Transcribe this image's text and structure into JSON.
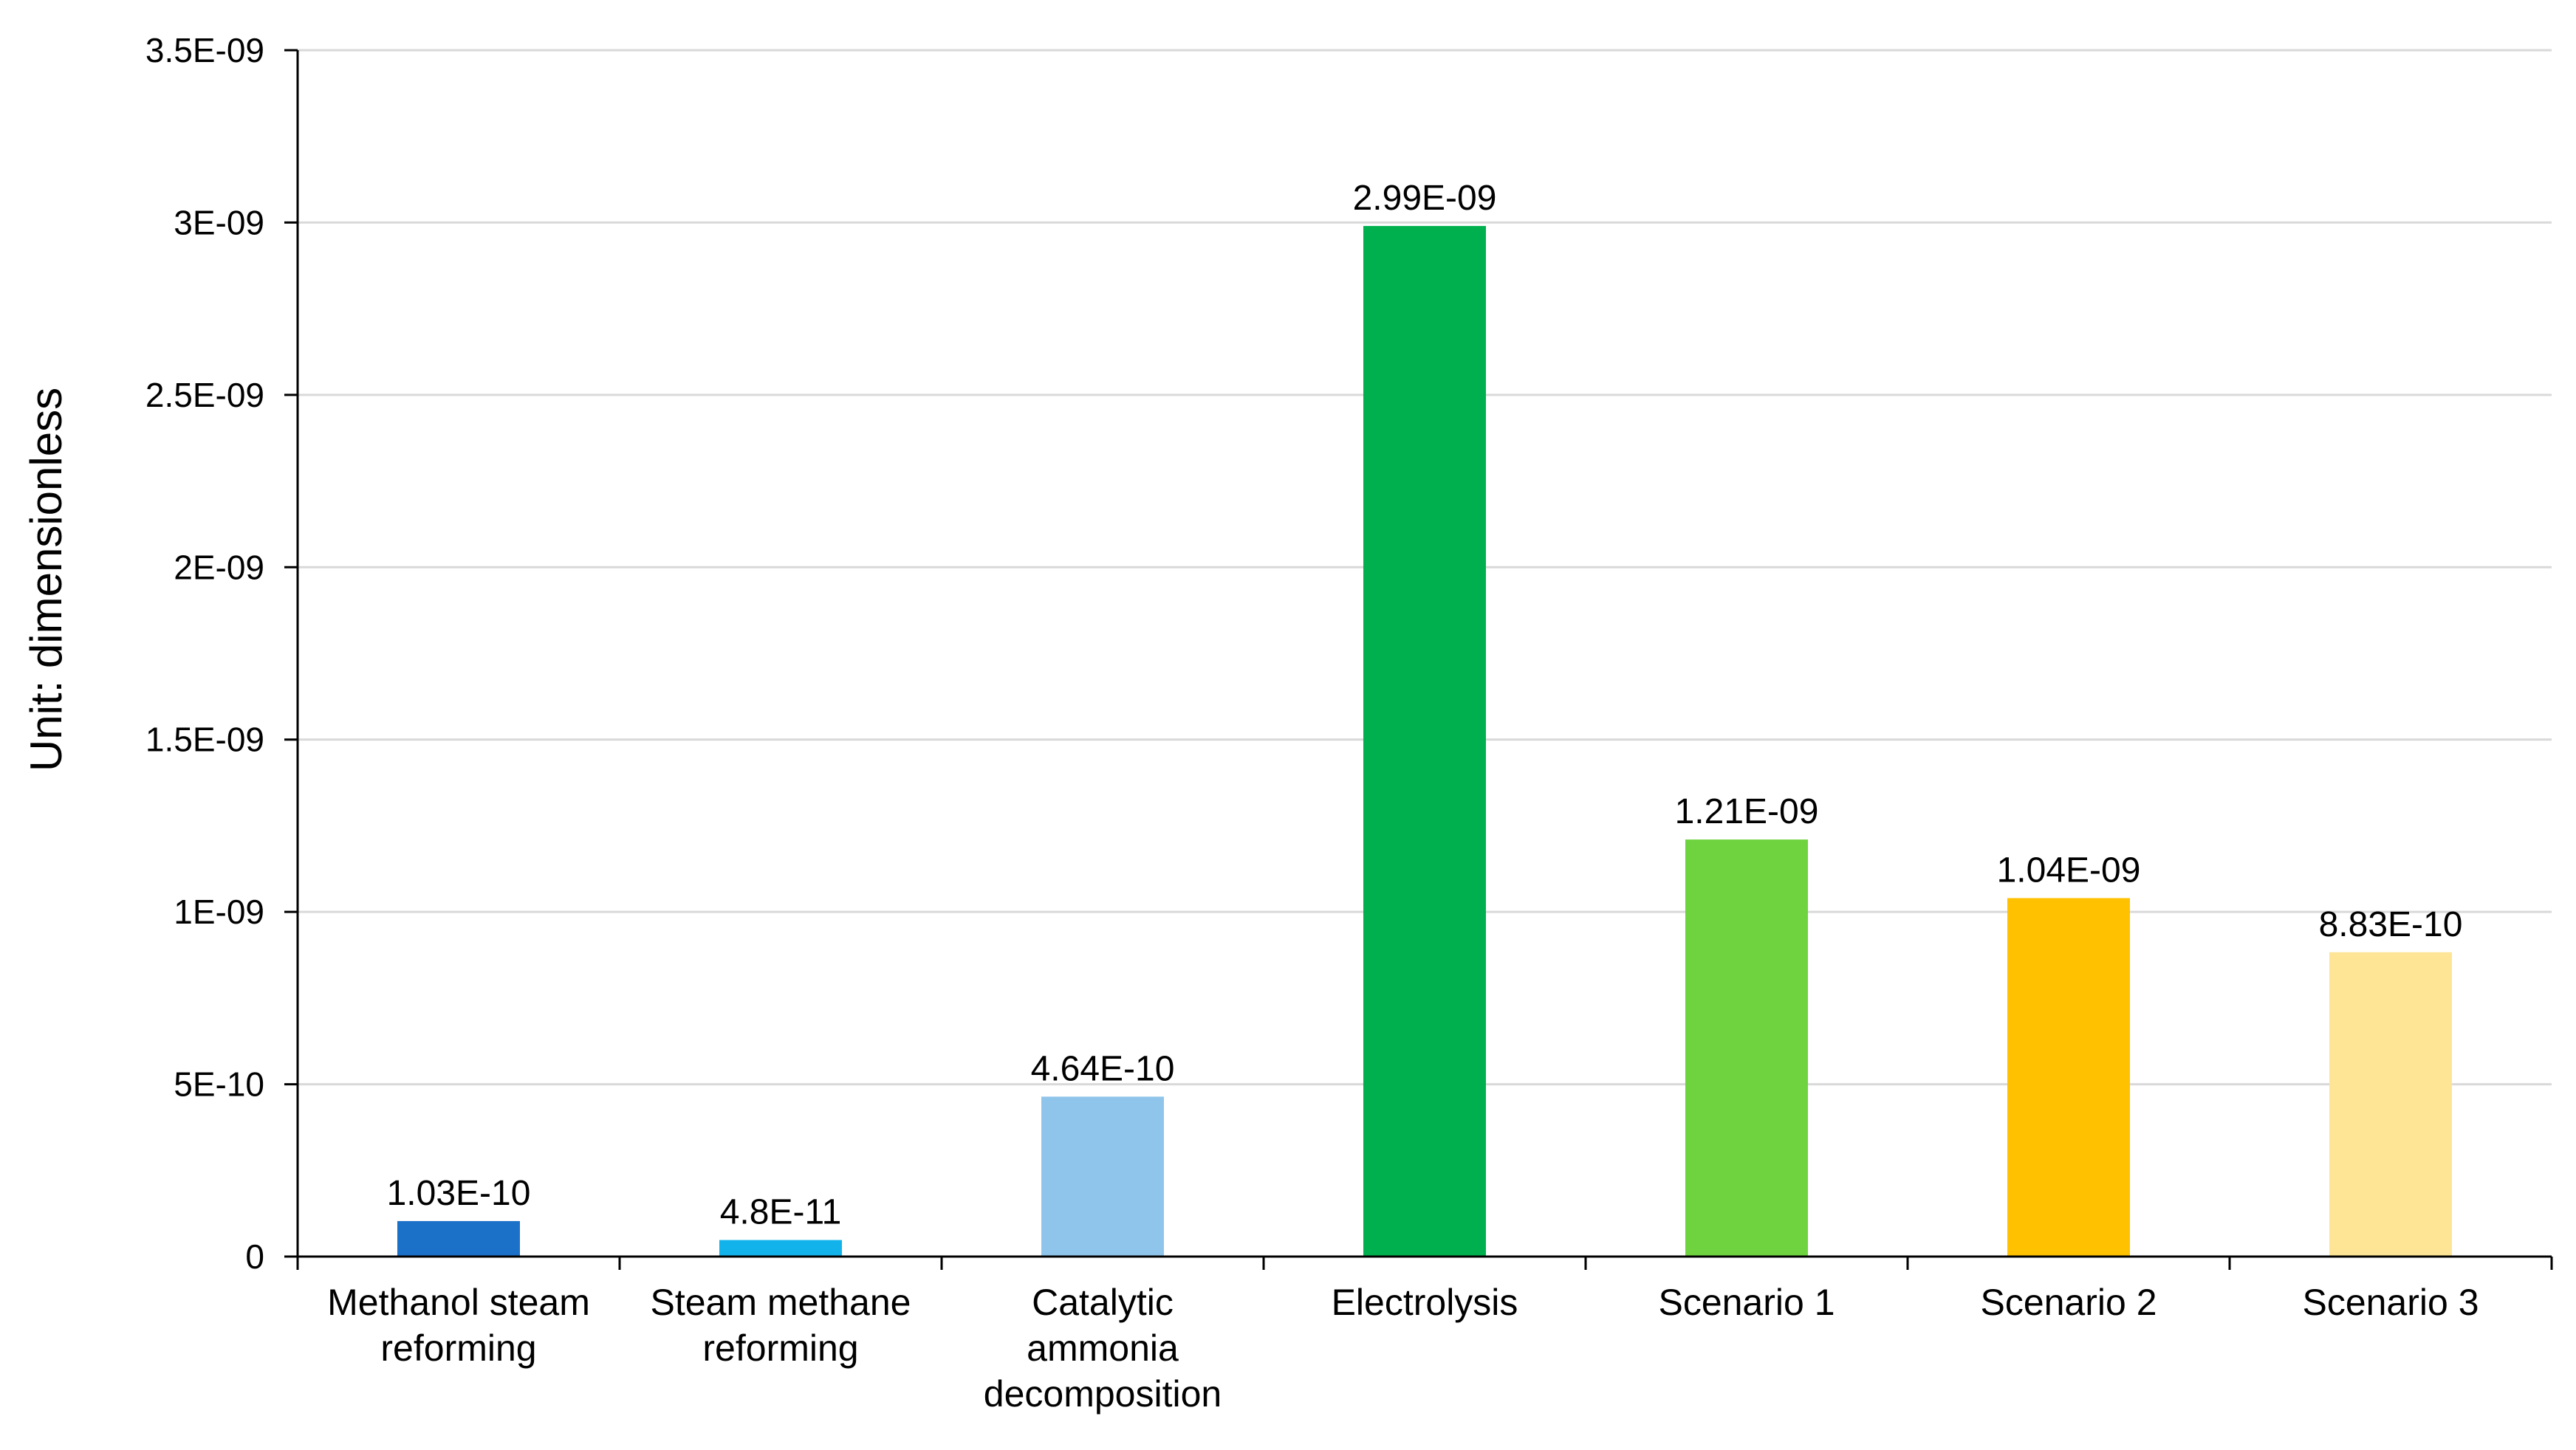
{
  "chart_data": {
    "type": "bar",
    "title": "",
    "xlabel": "",
    "ylabel": "Unit: dimensionless",
    "ylim": [
      0,
      3.5e-09
    ],
    "grid": true,
    "yticks": [
      {
        "value": 0,
        "label": "0"
      },
      {
        "value": 5e-10,
        "label": "5E-10"
      },
      {
        "value": 1e-09,
        "label": "1E-09"
      },
      {
        "value": 1.5e-09,
        "label": "1.5E-09"
      },
      {
        "value": 2e-09,
        "label": "2E-09"
      },
      {
        "value": 2.5e-09,
        "label": "2.5E-09"
      },
      {
        "value": 3e-09,
        "label": "3E-09"
      },
      {
        "value": 3.5e-09,
        "label": "3.5E-09"
      }
    ],
    "categories": [
      [
        "Methanol steam",
        "reforming"
      ],
      [
        "Steam methane",
        "reforming"
      ],
      [
        "Catalytic",
        "ammonia",
        "decomposition"
      ],
      [
        "Electrolysis"
      ],
      [
        "Scenario 1"
      ],
      [
        "Scenario 2"
      ],
      [
        "Scenario 3"
      ]
    ],
    "values": [
      1.03e-10,
      4.8e-11,
      4.64e-10,
      2.99e-09,
      1.21e-09,
      1.04e-09,
      8.83e-10
    ],
    "value_labels": [
      "1.03E-10",
      "4.8E-11",
      "4.64E-10",
      "2.99E-09",
      "1.21E-09",
      "1.04E-09",
      "8.83E-10"
    ],
    "colors": [
      "#1b70c8",
      "#12b3ea",
      "#8fc5ea",
      "#00b04e",
      "#6ed33f",
      "#ffc100",
      "#fee595"
    ]
  }
}
